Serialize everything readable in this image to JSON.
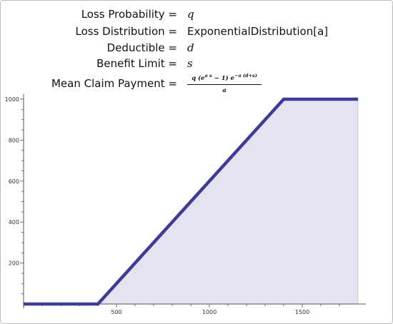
{
  "equations": [
    {
      "label": "Loss Probability =",
      "value": "q"
    },
    {
      "label": "Loss Distribution =",
      "value": "ExponentialDistribution[a]"
    },
    {
      "label": "Deductible =",
      "value": "d"
    },
    {
      "label": "Benefit Limit =",
      "value": "s"
    },
    {
      "label": "Mean Claim Payment ="
    }
  ],
  "formula": {
    "numerator": "q (e^(a s) − 1) e^(−a (d+s))",
    "numerator_parts": {
      "lead": "q (e",
      "exp1": "a s",
      "mid": " − 1) e",
      "exp2": "−a (d+s)"
    },
    "denominator": "a"
  },
  "chart_data": {
    "type": "area",
    "x": [
      0,
      400,
      1400,
      1800
    ],
    "y": [
      0,
      0,
      1000,
      1000
    ],
    "xlim": [
      0,
      1800
    ],
    "ylim": [
      0,
      1000
    ],
    "xticks": [
      500,
      1000,
      1500
    ],
    "yticks": [
      200,
      400,
      600,
      800,
      1000
    ],
    "xtick_labels": [
      "500",
      "1000",
      "1500"
    ],
    "ytick_labels": [
      "200",
      "400",
      "600",
      "800",
      "1000"
    ],
    "grid": false,
    "title": "",
    "xlabel": "",
    "ylabel": "",
    "colors": {
      "line": "#3c3c96",
      "fill": "#dcd8ec"
    }
  }
}
